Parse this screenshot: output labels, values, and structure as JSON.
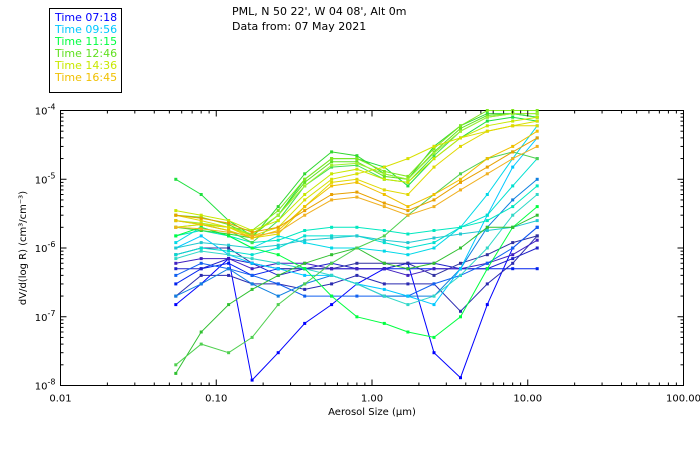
{
  "header": {
    "location": "PML, N 50 22', W 04 08', Alt 0m",
    "date": "Data from: 07 May 2021"
  },
  "chart_data": {
    "type": "line",
    "xscale": "log",
    "yscale": "log",
    "xlim": [
      0.01,
      100
    ],
    "ylim": [
      1e-08,
      0.0001
    ],
    "xlabel": "Aerosol Size (μm)",
    "ylabel": "dV/d(log R) (cm³/cm⁻³)",
    "x_ticks": [
      {
        "value": 0.01,
        "label": "0.01"
      },
      {
        "value": 0.1,
        "label": "0.10"
      },
      {
        "value": 1,
        "label": "1.00"
      },
      {
        "value": 10,
        "label": "10.00"
      },
      {
        "value": 100,
        "label": "100.00"
      }
    ],
    "y_ticks": [
      {
        "value": 1e-08,
        "base": "10",
        "exp": "-8"
      },
      {
        "value": 1e-07,
        "base": "10",
        "exp": "-7"
      },
      {
        "value": 1e-06,
        "base": "10",
        "exp": "-6"
      },
      {
        "value": 1e-05,
        "base": "10",
        "exp": "-5"
      },
      {
        "value": 0.0001,
        "base": "10",
        "exp": "-4"
      }
    ],
    "grid": false,
    "legend_position": "top-left",
    "x": [
      0.055,
      0.08,
      0.12,
      0.17,
      0.25,
      0.37,
      0.55,
      0.8,
      1.2,
      1.7,
      2.5,
      3.7,
      5.5,
      8,
      11.5
    ],
    "series": [
      {
        "name": "Time 07:18",
        "color": "#0000ff",
        "values": [
          1.5e-07,
          3e-07,
          7e-07,
          1.2e-08,
          3e-08,
          8e-08,
          1.5e-07,
          3e-07,
          5e-07,
          6e-07,
          3e-08,
          1.3e-08,
          1.5e-07,
          1e-06,
          2e-06
        ]
      },
      {
        "name": "",
        "color": "#0020ee",
        "values": [
          3e-07,
          5e-07,
          6e-07,
          4e-07,
          5e-07,
          5e-07,
          5e-07,
          5e-07,
          5e-07,
          5e-07,
          5e-07,
          5e-07,
          5e-07,
          5e-07,
          5e-07
        ]
      },
      {
        "name": "",
        "color": "#2020c8",
        "values": [
          5e-07,
          5e-07,
          7e-07,
          6e-07,
          4e-07,
          5e-07,
          6e-07,
          5e-07,
          5e-07,
          6e-07,
          6e-07,
          5e-07,
          5e-07,
          7e-07,
          1e-06
        ]
      },
      {
        "name": "",
        "color": "#2a2ab0",
        "values": [
          2e-07,
          4e-07,
          4e-07,
          3e-07,
          3e-07,
          2.5e-07,
          3e-07,
          4e-07,
          3e-07,
          3e-07,
          3e-07,
          1.2e-07,
          3e-07,
          6e-07,
          1.5e-06
        ]
      },
      {
        "name": "",
        "color": "#3030a0",
        "values": [
          8e-07,
          1e-06,
          1e-06,
          6e-07,
          5e-07,
          5e-07,
          5e-07,
          6e-07,
          6e-07,
          6e-07,
          4e-07,
          6e-07,
          8e-07,
          1.2e-06,
          1.5e-06
        ]
      },
      {
        "name": "",
        "color": "#4020c0",
        "values": [
          6e-07,
          7e-07,
          7e-07,
          5e-07,
          6e-07,
          6e-07,
          5e-07,
          5e-07,
          5e-07,
          4e-07,
          5e-07,
          5e-07,
          6e-07,
          8e-07,
          1.3e-06
        ]
      },
      {
        "name": "",
        "color": "#1060f0",
        "values": [
          4e-07,
          6e-07,
          5e-07,
          4e-07,
          3e-07,
          2e-07,
          2e-07,
          2e-07,
          2e-07,
          2e-07,
          3e-07,
          4e-07,
          6e-07,
          1e-06,
          2e-06
        ]
      },
      {
        "name": "",
        "color": "#1080e0",
        "values": [
          2e-07,
          3e-07,
          5e-07,
          3e-07,
          2e-07,
          3e-07,
          4e-07,
          3e-07,
          2e-07,
          2e-07,
          2e-07,
          5e-07,
          2e-06,
          5e-06,
          1e-05
        ]
      },
      {
        "name": "Time 09:56",
        "color": "#00c8ff",
        "values": [
          1e-06,
          1.5e-06,
          8e-07,
          6e-07,
          5e-07,
          4e-07,
          4e-07,
          3e-07,
          2.5e-07,
          2e-07,
          1.5e-07,
          5e-07,
          3e-06,
          1.5e-05,
          4e-05
        ]
      },
      {
        "name": "",
        "color": "#00d8e8",
        "values": [
          1.2e-06,
          2e-06,
          1.5e-06,
          1e-06,
          1.5e-06,
          1.2e-06,
          1e-06,
          1e-06,
          9e-07,
          8e-07,
          1e-06,
          2e-06,
          6e-06,
          2e-05,
          6e-05
        ]
      },
      {
        "name": "",
        "color": "#00e0d0",
        "values": [
          8e-07,
          1e-06,
          9e-07,
          8e-07,
          1e-06,
          1.5e-06,
          1.5e-06,
          1.5e-06,
          1.2e-06,
          1e-06,
          1.2e-06,
          2e-06,
          3e-06,
          8e-06,
          2e-05
        ]
      },
      {
        "name": "",
        "color": "#00e8c0",
        "values": [
          1.5e-06,
          1.8e-06,
          1.5e-06,
          1.2e-06,
          1.3e-06,
          1.8e-06,
          2e-06,
          2e-06,
          1.8e-06,
          1.6e-06,
          1.8e-06,
          2e-06,
          2.5e-06,
          4e-06,
          8e-06
        ]
      },
      {
        "name": "",
        "color": "#20c8d0",
        "values": [
          1e-06,
          1.2e-06,
          1.1e-06,
          1e-06,
          1.1e-06,
          1.3e-06,
          1.4e-06,
          1.5e-06,
          1.3e-06,
          1.2e-06,
          1.4e-06,
          1.6e-06,
          1.8e-06,
          2e-06,
          2.5e-06
        ]
      },
      {
        "name": "",
        "color": "#30d8c8",
        "values": [
          7e-07,
          9e-07,
          8e-07,
          7e-07,
          6e-07,
          5e-07,
          4e-07,
          3e-07,
          2e-07,
          1.5e-07,
          2e-07,
          4e-07,
          1e-06,
          3e-06,
          6e-06
        ]
      },
      {
        "name": "Time 11:15",
        "color": "#00ff40",
        "values": [
          1.5e-06,
          2e-06,
          1.5e-06,
          1e-06,
          8e-07,
          5e-07,
          2e-07,
          1e-07,
          8e-08,
          6e-08,
          5e-08,
          1e-07,
          5e-07,
          2e-06,
          4e-06
        ]
      },
      {
        "name": "",
        "color": "#20e040",
        "values": [
          1e-05,
          6e-06,
          2.5e-06,
          1.5e-06,
          3e-06,
          1e-05,
          2e-05,
          2e-05,
          1.5e-05,
          8e-06,
          2e-05,
          4e-05,
          7e-05,
          8e-05,
          7e-05
        ]
      },
      {
        "name": "",
        "color": "#30d830",
        "values": [
          2e-06,
          1.8e-06,
          1.6e-06,
          1.4e-06,
          4e-06,
          1.2e-05,
          2.5e-05,
          2.2e-05,
          1.2e-05,
          1e-05,
          3e-05,
          6e-05,
          9e-05,
          9e-05,
          8e-05
        ]
      },
      {
        "name": "",
        "color": "#40e050",
        "values": [
          2.5e-06,
          2.2e-06,
          1.8e-06,
          1.2e-06,
          2.5e-06,
          8e-06,
          1.5e-05,
          1.6e-05,
          1e-05,
          9e-06,
          2.2e-05,
          5e-05,
          8e-05,
          9e-05,
          8e-05
        ]
      },
      {
        "name": "",
        "color": "#30c030",
        "values": [
          1.5e-08,
          6e-08,
          1.5e-07,
          2.5e-07,
          4e-07,
          6e-07,
          8e-07,
          1e-06,
          6e-07,
          5e-07,
          6e-07,
          1e-06,
          2e-06,
          2e-06,
          3e-06
        ]
      },
      {
        "name": "",
        "color": "#50d050",
        "values": [
          2e-08,
          4e-08,
          3e-08,
          5e-08,
          1.5e-07,
          3e-07,
          6e-07,
          1e-06,
          1.5e-06,
          3e-06,
          6e-06,
          1.2e-05,
          2e-05,
          2.5e-05,
          2e-05
        ]
      },
      {
        "name": "Time 12:46",
        "color": "#60e020",
        "values": [
          3e-06,
          2.8e-06,
          2.2e-06,
          1.5e-06,
          3e-06,
          9e-06,
          1.8e-05,
          1.8e-05,
          1.1e-05,
          1e-05,
          2.5e-05,
          5.5e-05,
          8.5e-05,
          9e-05,
          9e-05
        ]
      },
      {
        "name": "",
        "color": "#80e820",
        "values": [
          2e-06,
          2.2e-06,
          2e-06,
          1.8e-06,
          3.5e-06,
          1e-05,
          2e-05,
          2e-05,
          1.3e-05,
          1.1e-05,
          2.8e-05,
          6e-05,
          0.0001,
          0.0001,
          0.0001
        ]
      },
      {
        "name": "",
        "color": "#a0f030",
        "values": [
          2.5e-06,
          2.3e-06,
          2e-06,
          1.6e-06,
          3e-06,
          8e-06,
          1.6e-05,
          1.7e-05,
          1.2e-05,
          1e-05,
          2.4e-05,
          5e-05,
          8e-05,
          9e-05,
          9e-05
        ]
      },
      {
        "name": "Time 14:36",
        "color": "#c8e800",
        "values": [
          3.5e-06,
          3e-06,
          2.5e-06,
          1.8e-06,
          2.5e-06,
          6e-06,
          1.2e-05,
          1.4e-05,
          1e-05,
          9e-06,
          2e-05,
          4e-05,
          6e-05,
          7e-05,
          8e-05
        ]
      },
      {
        "name": "",
        "color": "#d8e000",
        "values": [
          2e-06,
          2.2e-06,
          2e-06,
          1.5e-06,
          2e-06,
          5e-06,
          1e-05,
          1.2e-05,
          1.5e-05,
          2e-05,
          3e-05,
          4e-05,
          5e-05,
          6e-05,
          7e-05
        ]
      },
      {
        "name": "",
        "color": "#e0d800",
        "values": [
          3e-06,
          2.5e-06,
          2e-06,
          1.4e-06,
          1.6e-06,
          4e-06,
          9e-06,
          1e-05,
          7e-06,
          6e-06,
          1.5e-05,
          3e-05,
          5e-05,
          6e-05,
          6e-05
        ]
      },
      {
        "name": "Time 16:45",
        "color": "#f0c000",
        "values": [
          2.5e-06,
          2.2e-06,
          1.8e-06,
          1.4e-06,
          1.8e-06,
          4e-06,
          8e-06,
          9e-06,
          6e-06,
          4e-06,
          6e-06,
          1e-05,
          2e-05,
          3e-05,
          5e-05
        ]
      },
      {
        "name": "",
        "color": "#e8a000",
        "values": [
          3e-06,
          2.7e-06,
          2.3e-06,
          1.7e-06,
          2e-06,
          3.5e-06,
          6e-06,
          6.5e-06,
          4.5e-06,
          3.5e-06,
          5e-06,
          9e-06,
          1.5e-05,
          2.5e-05,
          4e-05
        ]
      },
      {
        "name": "",
        "color": "#f0b020",
        "values": [
          2e-06,
          1.9e-06,
          1.7e-06,
          1.5e-06,
          1.7e-06,
          3e-06,
          5e-06,
          5.5e-06,
          4e-06,
          3e-06,
          4e-06,
          7e-06,
          1.2e-05,
          2e-05,
          3e-05
        ]
      }
    ]
  }
}
